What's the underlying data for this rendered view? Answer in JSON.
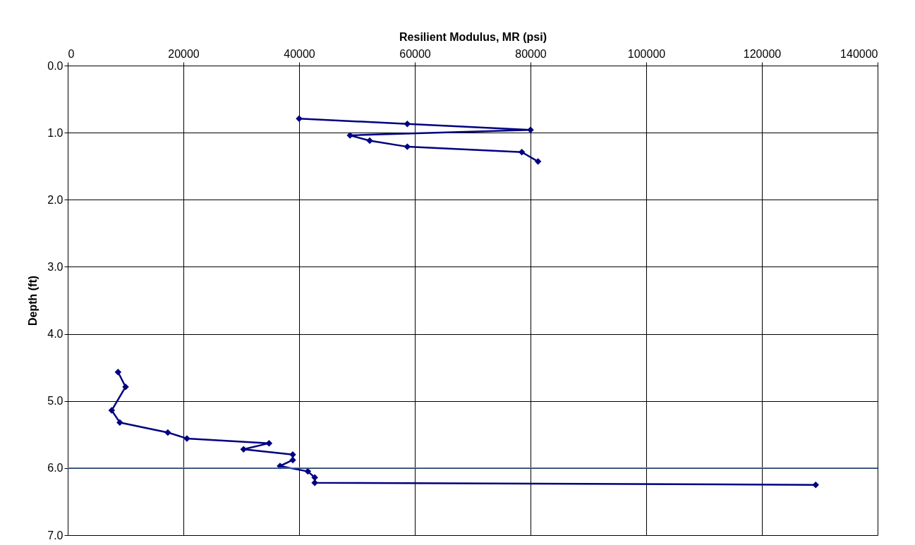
{
  "chart_data": {
    "type": "line",
    "xlabel": "Resilient Modulus, MR (psi)",
    "ylabel": "Depth (ft)",
    "marker": "diamond",
    "line_style": "solid",
    "grid": true,
    "xlim": [
      0,
      140000
    ],
    "xticks": [
      0,
      20000,
      40000,
      60000,
      80000,
      100000,
      120000,
      140000
    ],
    "ylim": [
      7,
      0
    ],
    "yticks": [
      {
        "value": 0,
        "label": "0.0"
      },
      {
        "value": 1,
        "label": "1.0"
      },
      {
        "value": 2,
        "label": "2.0"
      },
      {
        "value": 3,
        "label": "3.0"
      },
      {
        "value": 4,
        "label": "4.0"
      },
      {
        "value": 5,
        "label": "5.0"
      },
      {
        "value": 6,
        "label": "6.0"
      },
      {
        "value": 7,
        "label": "7.0"
      }
    ],
    "ref_lines": [
      {
        "axis": "y",
        "value": 6.0,
        "color": "#4a7cc0"
      }
    ],
    "series": [
      {
        "color": "#000080",
        "x": [
          40000,
          58700,
          80000,
          48800,
          52200,
          58700,
          78500,
          81300
        ],
        "values": [
          0.79,
          0.87,
          0.96,
          1.04,
          1.12,
          1.21,
          1.29,
          1.43
        ]
      },
      {
        "color": "#000080",
        "x": [
          8700,
          10000,
          7600,
          9000,
          17300,
          20600,
          34800,
          30400,
          38900,
          38900,
          36700,
          41500,
          42700,
          42700,
          129300
        ],
        "values": [
          4.57,
          4.79,
          5.14,
          5.32,
          5.47,
          5.56,
          5.63,
          5.72,
          5.8,
          5.88,
          5.97,
          6.05,
          6.14,
          6.22,
          6.25
        ]
      }
    ]
  }
}
